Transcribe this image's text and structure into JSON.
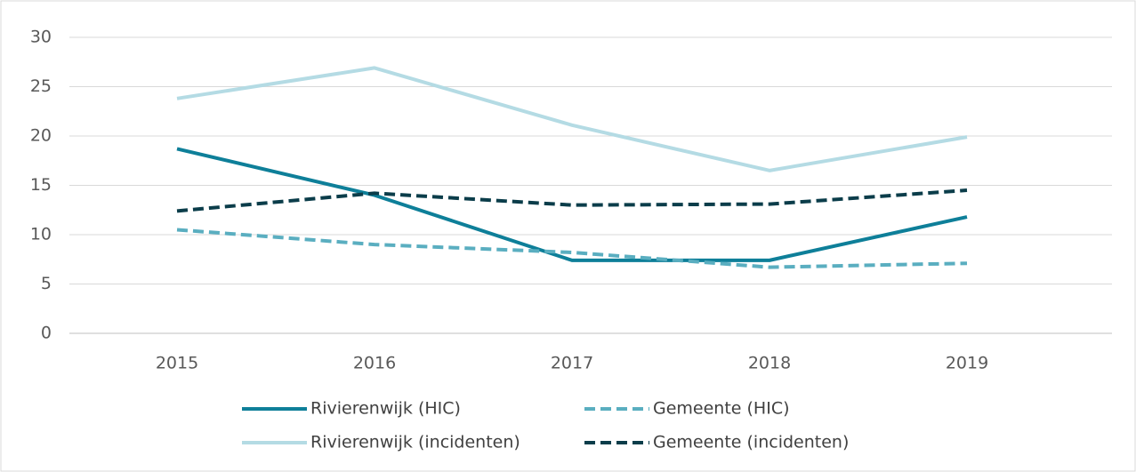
{
  "chart_data": {
    "type": "line",
    "categories": [
      "2015",
      "2016",
      "2017",
      "2018",
      "2019"
    ],
    "series": [
      {
        "name": "Rivierenwijk (HIC)",
        "color": "#0e7f99",
        "dashed": false,
        "values": [
          18.7,
          14.0,
          7.4,
          7.4,
          11.8
        ]
      },
      {
        "name": "Gemeente (HIC)",
        "color": "#5aaec0",
        "dashed": true,
        "values": [
          10.5,
          9.0,
          8.2,
          6.7,
          7.1
        ]
      },
      {
        "name": "Rivierenwijk (incidenten)",
        "color": "#b4dbe4",
        "dashed": false,
        "values": [
          23.8,
          26.9,
          21.1,
          16.5,
          19.9
        ]
      },
      {
        "name": "Gemeente (incidenten)",
        "color": "#0b3d4a",
        "dashed": true,
        "values": [
          12.4,
          14.2,
          13.0,
          13.1,
          14.5
        ]
      }
    ],
    "ylim": [
      0,
      30
    ],
    "yticks": [
      0,
      5,
      10,
      15,
      20,
      25,
      30
    ],
    "grid": true,
    "legend": "bottom"
  }
}
